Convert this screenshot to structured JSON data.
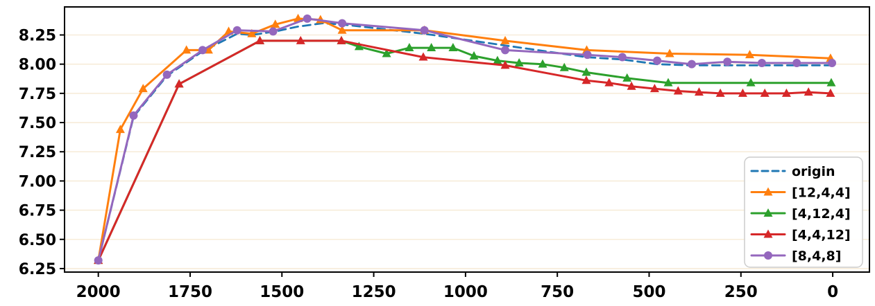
{
  "chart_data": {
    "type": "line",
    "title": "",
    "xlabel": "",
    "ylabel": "",
    "x_ticks": [
      2000,
      1750,
      1500,
      1250,
      1000,
      750,
      500,
      250,
      0
    ],
    "y_ticks": [
      8.25,
      8.0,
      7.75,
      7.5,
      7.25,
      7.0,
      6.75,
      6.5,
      6.25
    ],
    "x_axis_reversed": true,
    "xlim": [
      2092,
      -100
    ],
    "ylim": [
      6.22,
      8.49
    ],
    "grid": "horizontal",
    "grid_color": "#f7ecd9",
    "frame_color": "#000000",
    "tick_label_color": "#000000",
    "legend_position": "lower right",
    "legend_border_color": "#cccccc",
    "series": [
      {
        "name": "origin",
        "key": "origin",
        "color": "#1f77b4",
        "line": "dashed",
        "marker": "none",
        "x": [
          2000,
          1904,
          1813,
          1716,
          1622,
          1582,
          1518,
          1460,
          1390,
          1336,
          1112,
          892,
          670,
          573,
          478,
          385,
          290,
          190,
          95,
          0
        ],
        "y": [
          6.32,
          7.55,
          7.9,
          8.11,
          8.26,
          8.25,
          8.28,
          8.32,
          8.35,
          8.34,
          8.26,
          8.16,
          8.06,
          8.04,
          8.0,
          7.99,
          7.99,
          7.99,
          7.99,
          7.99
        ]
      },
      {
        "name": "[12,4,4]",
        "key": "12-4-4",
        "color": "#ff7f0e",
        "line": "solid",
        "marker": "triangle",
        "x": [
          2000,
          1940,
          1878,
          1760,
          1700,
          1645,
          1582,
          1518,
          1456,
          1395,
          1336,
          1112,
          892,
          670,
          444,
          226,
          6
        ],
        "y": [
          6.32,
          7.44,
          7.79,
          8.12,
          8.12,
          8.28,
          8.26,
          8.34,
          8.39,
          8.38,
          8.29,
          8.29,
          8.2,
          8.12,
          8.09,
          8.08,
          8.05
        ]
      },
      {
        "name": "[4,12,4]",
        "key": "4-12-4",
        "color": "#2ca02c",
        "line": "solid",
        "marker": "triangle",
        "x": [
          2000,
          1780,
          1560,
          1338,
          1290,
          1215,
          1153,
          1093,
          1034,
          977,
          913,
          854,
          790,
          731,
          671,
          560,
          448,
          223,
          4
        ],
        "y": [
          6.32,
          7.83,
          8.2,
          8.2,
          8.15,
          8.09,
          8.14,
          8.14,
          8.14,
          8.07,
          8.03,
          8.01,
          8.0,
          7.97,
          7.93,
          7.88,
          7.84,
          7.84,
          7.84
        ]
      },
      {
        "name": "[4,4,12]",
        "key": "4-4-12",
        "color": "#d62728",
        "line": "solid",
        "marker": "triangle",
        "x": [
          2000,
          1780,
          1560,
          1449,
          1338,
          1115,
          892,
          671,
          609,
          548,
          485,
          421,
          364,
          306,
          245,
          185,
          126,
          66,
          6
        ],
        "y": [
          6.32,
          7.83,
          8.2,
          8.2,
          8.2,
          8.06,
          7.99,
          7.86,
          7.84,
          7.81,
          7.79,
          7.77,
          7.76,
          7.75,
          7.75,
          7.75,
          7.75,
          7.76,
          7.75
        ]
      },
      {
        "name": "[8,4,8]",
        "key": "8-4-8",
        "color": "#9467bd",
        "line": "solid",
        "marker": "circle",
        "x": [
          2000,
          1904,
          1813,
          1716,
          1622,
          1524,
          1431,
          1336,
          1112,
          892,
          668,
          573,
          478,
          384,
          287,
          193,
          98,
          2
        ],
        "y": [
          6.32,
          7.56,
          7.91,
          8.12,
          8.29,
          8.28,
          8.39,
          8.35,
          8.29,
          8.12,
          8.08,
          8.06,
          8.03,
          8.0,
          8.02,
          8.01,
          8.01,
          8.01
        ]
      }
    ]
  }
}
